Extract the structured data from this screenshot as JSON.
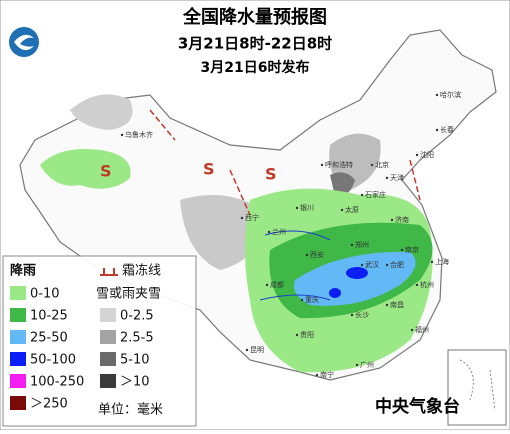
{
  "header": {
    "title": "全国降水量预报图",
    "period": "3月21日8时-22日8时",
    "issued": "3月21日6时发布"
  },
  "legend": {
    "rain": {
      "title": "降雨",
      "items": [
        {
          "label": "0-10",
          "color": "#9be887"
        },
        {
          "label": "10-25",
          "color": "#3fb848"
        },
        {
          "label": "25-50",
          "color": "#62b9f5"
        },
        {
          "label": "50-100",
          "color": "#0a1ef5"
        },
        {
          "label": "100-250",
          "color": "#f51ef0"
        },
        {
          "label": "＞250",
          "color": "#7a0a0a"
        }
      ]
    },
    "frost": {
      "title": "霜冻线",
      "color": "#c0392b"
    },
    "snow": {
      "title": "雪或雨夹雪",
      "items": [
        {
          "label": "0-2.5",
          "color": "#d4d4d4"
        },
        {
          "label": "2.5-5",
          "color": "#a3a3a3"
        },
        {
          "label": "5-10",
          "color": "#6b6b6b"
        },
        {
          "label": "＞10",
          "color": "#3a3a3a"
        }
      ]
    },
    "unit": "单位：毫米"
  },
  "source": "中央气象台",
  "cities": [
    "乌鲁木齐",
    "西宁",
    "兰州",
    "银川",
    "呼和浩特",
    "太原",
    "北京",
    "天津",
    "石家庄",
    "济南",
    "郑州",
    "西安",
    "成都",
    "重庆",
    "武汉",
    "合肥",
    "南京",
    "上海",
    "杭州",
    "长沙",
    "南昌",
    "福州",
    "贵阳",
    "昆明",
    "南宁",
    "广州",
    "哈尔滨",
    "长春",
    "沈阳"
  ]
}
